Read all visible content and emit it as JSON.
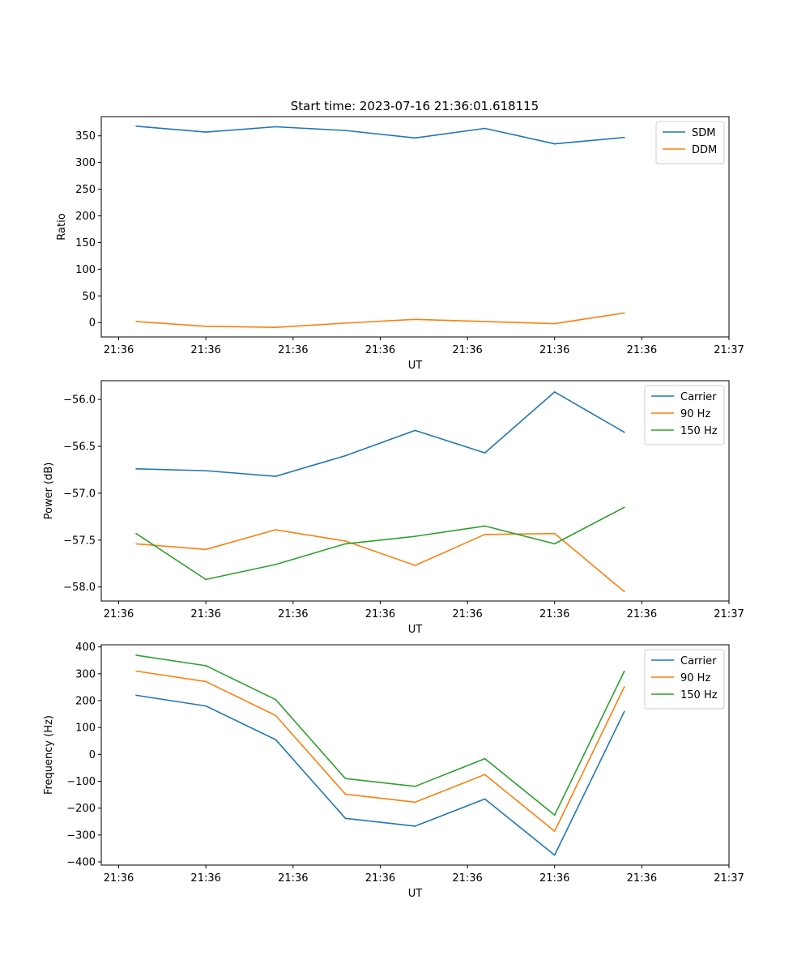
{
  "chart_data": [
    {
      "type": "line",
      "title": "Start time: 2023-07-16 21:36:01.618115",
      "xlabel": "UT",
      "ylabel": "Ratio",
      "xlim": [
        -0.5,
        8.5
      ],
      "x": [
        0,
        1,
        2,
        3,
        4,
        5,
        6,
        7
      ],
      "xticks": [
        -0.25,
        1,
        2.25,
        3.5,
        4.75,
        6,
        7.25,
        8.5
      ],
      "xtick_labels": [
        "21:36",
        "21:36",
        "21:36",
        "21:36",
        "21:36",
        "21:36",
        "21:36",
        "21:37"
      ],
      "ylim": [
        -27,
        386
      ],
      "yticks": [
        0,
        50,
        100,
        150,
        200,
        250,
        300,
        350
      ],
      "ytick_labels": [
        "0",
        "50",
        "100",
        "150",
        "200",
        "250",
        "300",
        "350"
      ],
      "legend": "top-right",
      "series": [
        {
          "name": "SDM",
          "color": "#1f77b4",
          "values": [
            368,
            357,
            367,
            360,
            346,
            364,
            335,
            347
          ]
        },
        {
          "name": "DDM",
          "color": "#ff7f0e",
          "values": [
            2,
            -7,
            -9,
            -1,
            6,
            2,
            -2,
            18
          ]
        }
      ]
    },
    {
      "type": "line",
      "title": "",
      "xlabel": "UT",
      "ylabel": "Power (dB)",
      "xlim": [
        -0.5,
        8.5
      ],
      "x": [
        0,
        1,
        2,
        3,
        4,
        5,
        6,
        7
      ],
      "xticks": [
        -0.25,
        1,
        2.25,
        3.5,
        4.75,
        6,
        7.25,
        8.5
      ],
      "xtick_labels": [
        "21:36",
        "21:36",
        "21:36",
        "21:36",
        "21:36",
        "21:36",
        "21:36",
        "21:37"
      ],
      "ylim": [
        -58.15,
        -55.8
      ],
      "yticks": [
        -58.0,
        -57.5,
        -57.0,
        -56.5,
        -56.0
      ],
      "ytick_labels": [
        "−58.0",
        "−57.5",
        "−57.0",
        "−56.5",
        "−56.0"
      ],
      "legend": "top-right",
      "series": [
        {
          "name": "Carrier",
          "color": "#1f77b4",
          "values": [
            -56.74,
            -56.76,
            -56.82,
            -56.6,
            -56.33,
            -56.57,
            -55.92,
            -56.35
          ]
        },
        {
          "name": "90 Hz",
          "color": "#ff7f0e",
          "values": [
            -57.54,
            -57.6,
            -57.39,
            -57.51,
            -57.77,
            -57.44,
            -57.43,
            -58.05
          ]
        },
        {
          "name": "150 Hz",
          "color": "#2ca02c",
          "values": [
            -57.43,
            -57.92,
            -57.76,
            -57.54,
            -57.46,
            -57.35,
            -57.54,
            -57.15
          ]
        }
      ]
    },
    {
      "type": "line",
      "title": "",
      "xlabel": "UT",
      "ylabel": "Frequency (Hz)",
      "xlim": [
        -0.5,
        8.5
      ],
      "x": [
        0,
        1,
        2,
        3,
        4,
        5,
        6,
        7
      ],
      "xticks": [
        -0.25,
        1,
        2.25,
        3.5,
        4.75,
        6,
        7.25,
        8.5
      ],
      "xtick_labels": [
        "21:36",
        "21:36",
        "21:36",
        "21:36",
        "21:36",
        "21:36",
        "21:36",
        "21:37"
      ],
      "ylim": [
        -412,
        408
      ],
      "yticks": [
        -400,
        -300,
        -200,
        -100,
        0,
        100,
        200,
        300,
        400
      ],
      "ytick_labels": [
        "−400",
        "−300",
        "−200",
        "−100",
        "0",
        "100",
        "200",
        "300",
        "400"
      ],
      "legend": "top-right",
      "series": [
        {
          "name": "Carrier",
          "color": "#1f77b4",
          "values": [
            220,
            180,
            55,
            -238,
            -267,
            -166,
            -375,
            160
          ]
        },
        {
          "name": "90 Hz",
          "color": "#ff7f0e",
          "values": [
            310,
            271,
            145,
            -148,
            -178,
            -75,
            -286,
            252
          ]
        },
        {
          "name": "150 Hz",
          "color": "#2ca02c",
          "values": [
            369,
            330,
            204,
            -90,
            -119,
            -16,
            -226,
            310
          ]
        }
      ]
    }
  ]
}
